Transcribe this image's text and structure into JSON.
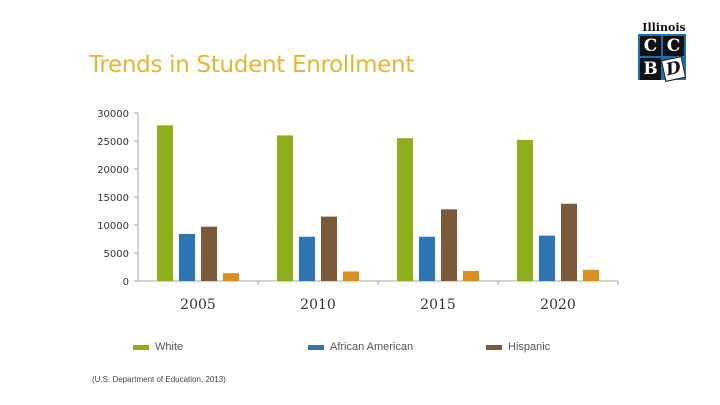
{
  "slide": {
    "title": "Trends in Student Enrollment",
    "source": "(U.S. Department of Education, 2013)"
  },
  "logo": {
    "top_text": "Illinois",
    "letters": [
      "C",
      "C",
      "B",
      "D"
    ]
  },
  "colors": {
    "title": "#e8b530",
    "white_series": "#8fae1b",
    "african_american_series": "#2e75b6",
    "hispanic_series": "#7b5a3a",
    "other_series": "#d9901e",
    "axis": "#a6a6a6"
  },
  "chart_data": {
    "type": "bar",
    "categories": [
      "2005",
      "2010",
      "2015",
      "2020"
    ],
    "series": [
      {
        "name": "White",
        "values": [
          27800,
          26000,
          25500,
          25200
        ]
      },
      {
        "name": "African American",
        "values": [
          8400,
          7900,
          7900,
          8100
        ]
      },
      {
        "name": "Hispanic",
        "values": [
          9700,
          11500,
          12800,
          13800
        ]
      },
      {
        "values": [
          1400,
          1700,
          1800,
          2000
        ]
      }
    ],
    "yticks": [
      0,
      5000,
      10000,
      15000,
      20000,
      25000,
      30000
    ],
    "ylim": [
      0,
      30000
    ],
    "grid": false,
    "legend": "bottom"
  }
}
